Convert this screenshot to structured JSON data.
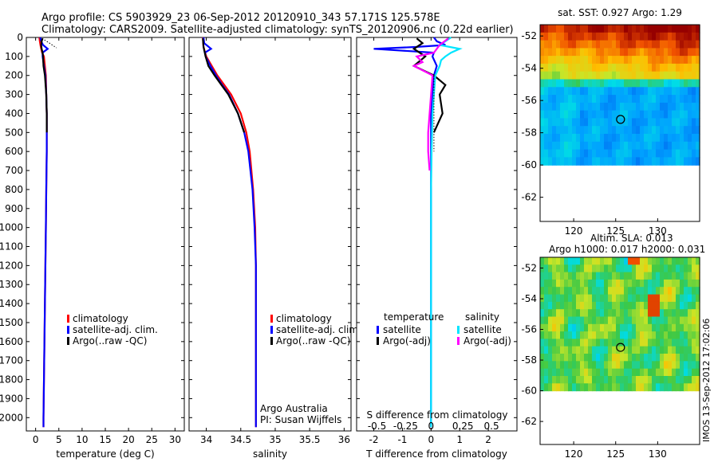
{
  "header": {
    "line1": "Argo profile: CS 5903929_23 06-Sep-2012 20120910_343 57.171S 125.578E",
    "line2": "Climatology: CARS2009. Satellite-adjusted climatology: synTS_20120906.nc (0.22d earlier)"
  },
  "colors": {
    "climatology": "#ff0000",
    "satellite": "#0000ff",
    "argo": "#000000",
    "sal_satellite": "#00e5ff",
    "sal_argo": "#ff00ff"
  },
  "depth_ticks": [
    0,
    100,
    200,
    300,
    400,
    500,
    600,
    700,
    800,
    900,
    1000,
    1100,
    1200,
    1300,
    1400,
    1500,
    1600,
    1700,
    1800,
    1900,
    2000
  ],
  "chart_data": [
    {
      "type": "line",
      "name": "temperature-profile",
      "xlabel": "temperature (deg C)",
      "xlim": [
        -2,
        32
      ],
      "ylim": [
        2070,
        0
      ],
      "xticks": [
        0,
        5,
        10,
        15,
        20,
        25,
        30
      ],
      "legend": {
        "placement": "lower-middle",
        "entries": [
          "climatology",
          "satellite-adj. clim.",
          "Argo(..raw -QC)"
        ]
      },
      "series": [
        {
          "name": "climatology",
          "color": "#ff0000",
          "depth": [
            0,
            20,
            50,
            80,
            100,
            150,
            200,
            300,
            400,
            600,
            800,
            1000,
            1200,
            1400,
            1600,
            1800,
            2000,
            2050
          ],
          "values": [
            0.8,
            0.9,
            1.1,
            1.4,
            1.8,
            2.0,
            2.2,
            2.3,
            2.4,
            2.4,
            2.3,
            2.2,
            2.1,
            2.0,
            1.9,
            1.8,
            1.7,
            1.7
          ]
        },
        {
          "name": "satellite-adj. clim.",
          "color": "#0000ff",
          "depth": [
            0,
            20,
            40,
            60,
            80,
            100,
            150,
            200,
            300,
            400,
            600,
            800,
            1000,
            1200,
            1400,
            1600,
            1800,
            2000,
            2050
          ],
          "values": [
            1.0,
            1.2,
            1.6,
            2.6,
            1.5,
            1.5,
            1.8,
            2.1,
            2.3,
            2.4,
            2.4,
            2.3,
            2.2,
            2.1,
            2.0,
            1.9,
            1.8,
            1.7,
            1.7
          ]
        },
        {
          "name": "Argo(..raw -QC)",
          "color": "#000000",
          "depth": [
            5,
            20,
            40,
            60,
            80,
            100,
            150,
            200,
            300,
            400,
            500
          ],
          "values": [
            1.5,
            1.3,
            1.2,
            1.3,
            1.5,
            1.6,
            1.7,
            2.0,
            2.3,
            2.4,
            2.4
          ]
        }
      ]
    },
    {
      "type": "line",
      "name": "salinity-profile",
      "xlabel": "salinity",
      "xlim": [
        33.75,
        36.1
      ],
      "ylim": [
        2070,
        0
      ],
      "xticks": [
        34,
        34.5,
        35,
        35.5,
        36
      ],
      "legend": {
        "placement": "lower-middle",
        "entries": [
          "climatology",
          "satellite-adj. clim.",
          "Argo(..raw -QC)"
        ]
      },
      "annotation": [
        "Argo Australia",
        "PI: Susan Wijffels"
      ],
      "series": [
        {
          "name": "climatology",
          "color": "#ff0000",
          "depth": [
            0,
            50,
            100,
            150,
            200,
            250,
            300,
            400,
            500,
            600,
            800,
            1000,
            1200,
            1400,
            1600,
            1800,
            2000,
            2050
          ],
          "values": [
            33.95,
            33.96,
            34.0,
            34.08,
            34.16,
            34.26,
            34.36,
            34.5,
            34.58,
            34.63,
            34.68,
            34.71,
            34.72,
            34.72,
            34.72,
            34.72,
            34.72,
            34.72
          ]
        },
        {
          "name": "satellite-adj. clim.",
          "color": "#0000ff",
          "depth": [
            0,
            30,
            60,
            80,
            100,
            150,
            200,
            250,
            300,
            400,
            500,
            600,
            800,
            1000,
            1200,
            1400,
            1600,
            1800,
            2000,
            2050
          ],
          "values": [
            33.96,
            33.97,
            34.07,
            33.98,
            33.99,
            34.06,
            34.14,
            34.23,
            34.33,
            34.46,
            34.55,
            34.61,
            34.67,
            34.7,
            34.72,
            34.72,
            34.72,
            34.72,
            34.72,
            34.72
          ]
        },
        {
          "name": "Argo(..raw -QC)",
          "color": "#000000",
          "depth": [
            5,
            50,
            100,
            150,
            200,
            250,
            300,
            400,
            500
          ],
          "values": [
            33.95,
            33.96,
            33.99,
            34.03,
            34.12,
            34.22,
            34.32,
            34.46,
            34.55
          ]
        }
      ]
    },
    {
      "type": "line",
      "name": "difference-profile",
      "xlabel": "T difference from climatology",
      "xlabel_top": "S difference from climatology",
      "xlim": [
        -2.6,
        3.0
      ],
      "ylim": [
        2070,
        0
      ],
      "xticks": [
        -2,
        -1,
        0,
        1,
        2
      ],
      "xticks_top": [
        -0.5,
        -0.25,
        0,
        0.25,
        0.5
      ],
      "legend": {
        "placement": "lower-middle",
        "headings": [
          "temperature",
          "salinity"
        ],
        "entries": [
          "satellite",
          "Argo(-adj)",
          "satellite",
          "Argo(-adj)"
        ]
      },
      "series": [
        {
          "name": "temperature satellite",
          "color": "#0000ff",
          "depth": [
            0,
            20,
            40,
            50,
            60,
            80,
            100,
            150,
            200,
            300,
            400,
            600,
            800,
            1000,
            1400,
            1800,
            2050
          ],
          "values": [
            0.1,
            0.2,
            0.5,
            -0.5,
            -2.0,
            0.1,
            0.05,
            0.2,
            0.1,
            0.05,
            0.0,
            0.0,
            0.0,
            0.0,
            0.0,
            0.0,
            0.0
          ]
        },
        {
          "name": "temperature Argo(-adj)",
          "color": "#000000",
          "depth": [
            5,
            30,
            60,
            100,
            150,
            200,
            250,
            300,
            400,
            500
          ],
          "values": [
            -0.5,
            -0.3,
            -0.6,
            -0.2,
            -0.6,
            0.1,
            0.5,
            0.3,
            0.4,
            0.1
          ]
        },
        {
          "name": "salinity satellite",
          "color": "#00e5ff",
          "depth": [
            0,
            20,
            40,
            60,
            80,
            100,
            120,
            150,
            200,
            300,
            400,
            600,
            800,
            1000,
            1400,
            1800,
            2050
          ],
          "values": [
            0.7,
            0.5,
            0.3,
            1.0,
            0.7,
            0.5,
            0.35,
            0.3,
            0.15,
            0.1,
            0.05,
            0.02,
            0.0,
            0.0,
            0.0,
            0.0,
            0.0
          ]
        },
        {
          "name": "salinity Argo(-adj)",
          "color": "#ff00ff",
          "depth": [
            5,
            40,
            80,
            100,
            130,
            150,
            180,
            200,
            300,
            400,
            500,
            600,
            700
          ],
          "values": [
            0.6,
            0.3,
            0.1,
            -0.5,
            -0.3,
            -0.6,
            -0.2,
            0.05,
            0.0,
            -0.05,
            -0.1,
            -0.1,
            -0.05
          ]
        }
      ]
    },
    {
      "type": "heatmap",
      "name": "sst-map",
      "title": "sat. SST: 0.927 Argo: 1.29",
      "xlim": [
        116,
        135
      ],
      "ylim": [
        -63.5,
        -51.3
      ],
      "xticks": [
        120,
        125,
        130
      ],
      "yticks": [
        -52,
        -54,
        -56,
        -58,
        -60,
        -62
      ],
      "marker": {
        "lon": 125.578,
        "lat": -57.171
      },
      "data_extent_south": -60
    },
    {
      "type": "heatmap",
      "name": "sla-map",
      "title_line1": "Altim. SLA: 0.013",
      "title_line2": "Argo h1000: 0.017 h2000: 0.031",
      "xlim": [
        116,
        135
      ],
      "ylim": [
        -63.5,
        -51.3
      ],
      "xticks": [
        120,
        125,
        130
      ],
      "yticks": [
        -52,
        -54,
        -56,
        -58,
        -60,
        -62
      ],
      "marker": {
        "lon": 125.578,
        "lat": -57.171
      },
      "data_extent_south": -60
    }
  ],
  "side_stamp": "IMOS 13-Sep-2012 17:02:06"
}
